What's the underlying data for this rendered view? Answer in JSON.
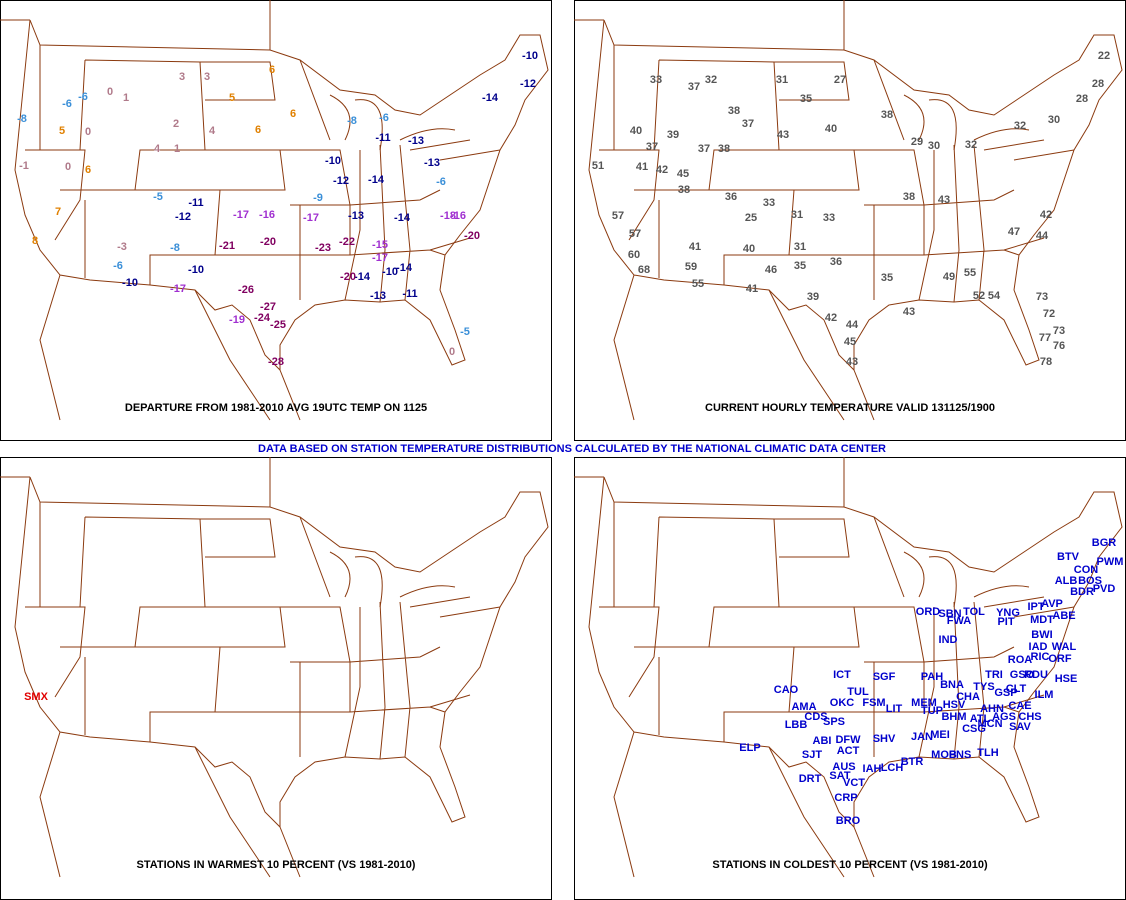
{
  "banner": "DATA BASED ON STATION TEMPERATURE DISTRIBUTIONS CALCULATED BY THE NATIONAL CLIMATIC DATA CENTER",
  "panels": [
    {
      "title": "DEPARTURE FROM 1981-2010 AVG 19UTC TEMP ON 1125",
      "labels": [
        3,
        3,
        0,
        1,
        -6,
        -6,
        -8,
        5,
        0,
        2,
        4,
        4,
        1,
        6,
        0,
        -1,
        -5,
        -11,
        -12,
        -8,
        -10,
        -6,
        -10,
        -17,
        -21,
        -20,
        -23,
        -22,
        -26,
        -27,
        -25,
        -24,
        -28,
        -19,
        -17,
        -16,
        -17,
        -13,
        -9,
        -10,
        -12,
        -14,
        -6,
        -8,
        -11,
        -13,
        -13,
        -14,
        -10,
        -12,
        -6,
        -14,
        -18,
        -16,
        -20,
        -15,
        -17,
        -14,
        -10,
        -14,
        -20,
        -13,
        -11,
        -5,
        0,
        6,
        5,
        6,
        6,
        7,
        8,
        -3
      ]
    },
    {
      "title": "CURRENT HOURLY TEMPERATURE VALID 131125/1900",
      "labels": [
        22,
        28,
        33,
        37,
        32,
        31,
        27,
        35,
        38,
        37,
        40,
        39,
        37,
        37,
        38,
        43,
        40,
        38,
        29,
        30,
        32,
        32,
        30,
        28,
        51,
        41,
        42,
        45,
        38,
        36,
        33,
        25,
        31,
        33,
        38,
        43,
        57,
        57,
        41,
        40,
        46,
        59,
        55,
        41,
        31,
        35,
        36,
        39,
        42,
        44,
        45,
        43,
        35,
        43,
        49,
        55,
        52,
        54,
        73,
        72,
        73,
        76,
        77,
        78,
        60,
        68,
        44,
        42,
        47
      ]
    },
    {
      "title": "STATIONS IN WARMEST 10 PERCENT (VS 1981-2010)",
      "labels": [
        "SMX"
      ]
    },
    {
      "title": "STATIONS IN COLDEST 10 PERCENT (VS 1981-2010)",
      "labels": [
        "BGR",
        "PWM",
        "CON",
        "BTV",
        "ALB",
        "BOS",
        "BDR",
        "PVD",
        "IPT",
        "AVP",
        "ABE",
        "ORD",
        "SBN",
        "TOL",
        "YNG",
        "FWA",
        "PIT",
        "MDT",
        "IND",
        "BWI",
        "IAD",
        "WAL",
        "RIC",
        "ROA",
        "ORF",
        "RDU",
        "GSO",
        "TRI",
        "ICT",
        "SGF",
        "PAH",
        "TUL",
        "CAO",
        "BNA",
        "TYS",
        "CLT",
        "ILM",
        "HSE",
        "AMA",
        "OKC",
        "FSM",
        "LIT",
        "MEM",
        "TUP",
        "CHA",
        "HSV",
        "GSP",
        "AHN",
        "CAE",
        "CDS",
        "SPS",
        "LBB",
        "BHM",
        "ATL",
        "AGS",
        "CHS",
        "CSG",
        "MCN",
        "SAV",
        "ABI",
        "DFW",
        "SHV",
        "JAN",
        "MEI",
        "ELP",
        "ACT",
        "SJT",
        "MOB",
        "PNS",
        "TLH",
        "BTR",
        "AUS",
        "IAH",
        "LCH",
        "SAT",
        "DRT",
        "VCT",
        "CRP",
        "BRO"
      ]
    }
  ]
}
